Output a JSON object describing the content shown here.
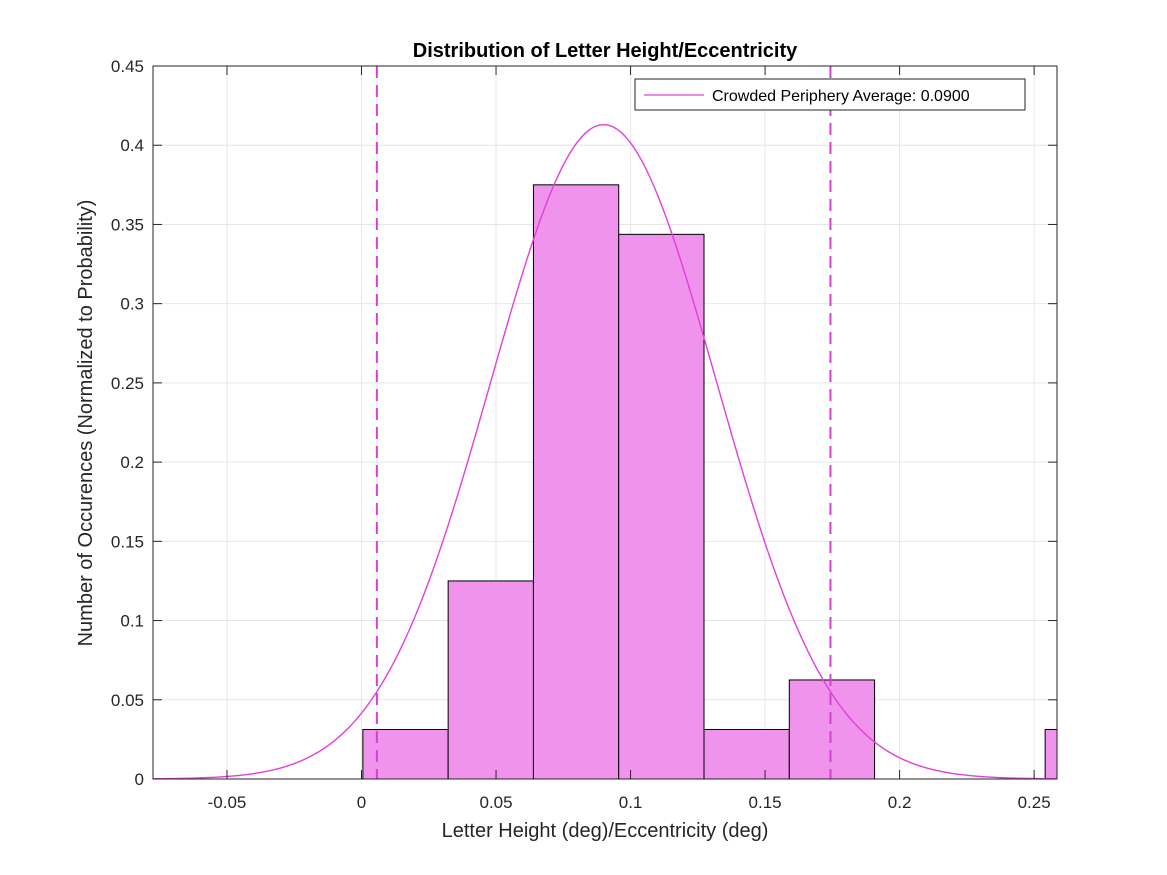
{
  "chart_data": {
    "type": "bar",
    "title": "Distribution of Letter Height/Eccentricity",
    "xlabel": "Letter Height (deg)/Eccentricity (deg)",
    "ylabel": "Number of Occurences (Normalized to Probability)",
    "xlim": [
      -0.0775,
      0.2585
    ],
    "ylim": [
      0,
      0.45
    ],
    "xticks": [
      -0.05,
      0,
      0.05,
      0.1,
      0.15,
      0.2,
      0.25
    ],
    "xtick_labels": [
      "-0.05",
      "0",
      "0.05",
      "0.1",
      "0.15",
      "0.2",
      "0.25"
    ],
    "yticks": [
      0,
      0.05,
      0.1,
      0.15,
      0.2,
      0.25,
      0.3,
      0.35,
      0.4,
      0.45
    ],
    "ytick_labels": [
      "0",
      "0.05",
      "0.1",
      "0.15",
      "0.2",
      "0.25",
      "0.3",
      "0.35",
      "0.4",
      "0.45"
    ],
    "grid": true,
    "bins": [
      {
        "x0": 0.0005,
        "x1": 0.0322,
        "value": 0.03125
      },
      {
        "x0": 0.0322,
        "x1": 0.0639,
        "value": 0.125
      },
      {
        "x0": 0.0639,
        "x1": 0.0956,
        "value": 0.375
      },
      {
        "x0": 0.0956,
        "x1": 0.1273,
        "value": 0.34375
      },
      {
        "x0": 0.1273,
        "x1": 0.159,
        "value": 0.03125
      },
      {
        "x0": 0.159,
        "x1": 0.1907,
        "value": 0.0625
      },
      {
        "x0": 0.2541,
        "x1": 0.2858,
        "value": 0.03125
      }
    ],
    "fit_curve": {
      "type": "normal",
      "mean": 0.09,
      "std": 0.042,
      "peak": 0.413
    },
    "reference_lines": [
      0.0057,
      0.1743
    ],
    "legend": {
      "position": "top-right",
      "entries": [
        "Crowded Periphery Average: 0.0900"
      ]
    },
    "colors": {
      "bar_fill": "#f093ec",
      "bar_edge": "#000000",
      "curve": "#e040dc",
      "dashed": "#d63fd3",
      "grid": "#e6e6e6"
    }
  }
}
